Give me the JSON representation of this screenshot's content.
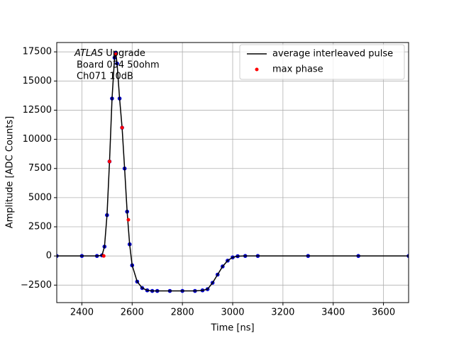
{
  "chart_data": {
    "type": "line",
    "annotation_italic": "ATLAS",
    "annotation": [
      "Upgrade",
      "Board 034 50ohm",
      "Ch071 10dB"
    ],
    "xlabel": "Time [ns]",
    "ylabel": "Amplitude [ADC Counts]",
    "xlim": [
      2300,
      3700
    ],
    "ylim": [
      -4000,
      18300
    ],
    "xticks": [
      2400,
      2600,
      2800,
      3000,
      3200,
      3400,
      3600
    ],
    "yticks": [
      {
        "value": -2500,
        "label": "−2500"
      },
      0,
      2500,
      5000,
      7500,
      10000,
      12500,
      15000,
      17500
    ],
    "grid": true,
    "legend": "upper right",
    "series": [
      {
        "name": "average interleaved pulse",
        "color": "#000000",
        "marker_color": "#0000cc",
        "x": [
          2300,
          2400,
          2460,
          2480,
          2490,
          2500,
          2510,
          2520,
          2530,
          2535,
          2540,
          2550,
          2560,
          2570,
          2580,
          2590,
          2600,
          2620,
          2640,
          2660,
          2680,
          2700,
          2750,
          2800,
          2850,
          2880,
          2900,
          2920,
          2940,
          2960,
          2980,
          3000,
          3020,
          3050,
          3100,
          3300,
          3500,
          3700
        ],
        "values": [
          0,
          0,
          0,
          50,
          800,
          3500,
          8100,
          13500,
          17000,
          17400,
          16500,
          13500,
          11000,
          7500,
          3800,
          1000,
          -800,
          -2200,
          -2750,
          -2950,
          -3000,
          -3000,
          -3000,
          -3000,
          -3000,
          -2950,
          -2850,
          -2300,
          -1600,
          -900,
          -400,
          -120,
          -20,
          0,
          0,
          0,
          0,
          0
        ]
      },
      {
        "name": "max phase",
        "color": "#ff0000",
        "style": "points",
        "x": [
          2487,
          2510,
          2535,
          2560,
          2585
        ],
        "values": [
          0,
          8100,
          17300,
          11000,
          3100
        ]
      }
    ]
  }
}
